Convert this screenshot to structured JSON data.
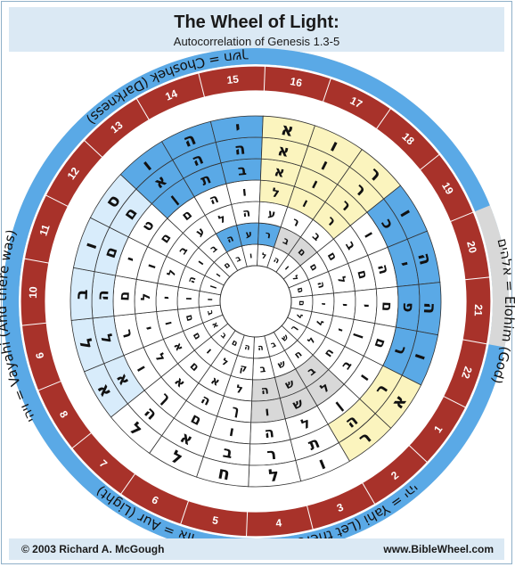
{
  "header": {
    "title": "The Wheel of Light:",
    "subtitle": "Autocorrelation of Genesis 1.3-5"
  },
  "footer": {
    "copyright": "© 2003 Richard A. McGough",
    "website": "www.BibleWheel.com"
  },
  "labels": {
    "aur": "אור = Aur (Light)",
    "yahi": "יהי = Yahi (Let there be)",
    "elohim": "אלהים = Elohim (God)",
    "choshek": "חשך = Choshek (Darkness)",
    "vayahi": "ויהי = Vayahi (And there was)"
  },
  "spokes": [
    "1",
    "2",
    "3",
    "4",
    "5",
    "6",
    "7",
    "8",
    "9",
    "10",
    "11",
    "12",
    "13",
    "14",
    "15",
    "16",
    "17",
    "18",
    "19",
    "20",
    "21",
    "22"
  ],
  "rings": [
    {
      "letters": [
        "",
        "",
        "",
        "",
        "",
        "",
        "",
        "",
        "",
        "",
        "",
        "",
        "",
        "א",
        "ו",
        "ר",
        "",
        ""
      ]
    },
    {
      "letters": []
    },
    {
      "letters": []
    }
  ],
  "cells": [
    [
      "א",
      "ר",
      "ו",
      "ל",
      "ח",
      "ל",
      "ל",
      "א",
      "ל",
      "ב",
      "ו",
      "ס",
      "ו",
      "ה",
      "י",
      "א",
      "ו",
      "ר",
      "ו",
      "ה",
      "ה",
      "ו"
    ],
    [
      "ר",
      "ה",
      "ת",
      "ר",
      "ב",
      "א",
      "ה",
      "א",
      "ל",
      "ה",
      "ם",
      "ם",
      "א",
      "ה",
      "ה",
      "א",
      "ו",
      "ר",
      "כ",
      "י",
      "פ",
      "ר"
    ],
    [
      "ו",
      "ן",
      "ל",
      "ה",
      "ו",
      "ם",
      "ך",
      "ו",
      "ר",
      "ם",
      "י",
      "ט",
      "ן",
      "ת",
      "ב",
      "א",
      "ו",
      "ר",
      "ו",
      "ה",
      "ם",
      "ם"
    ],
    [
      "ב",
      "ל",
      "ש",
      "ו",
      "ך",
      "ה",
      "א",
      "ל",
      "י",
      "ל",
      "ו",
      "ם",
      "ם",
      "ה",
      "ו",
      "ל",
      "ו",
      "ר",
      "ב",
      "ם",
      "י",
      "ן"
    ],
    [
      "ח",
      "ב",
      "ש",
      "ה",
      "ל",
      "א",
      "ם",
      "א",
      "ו",
      "י",
      "ל",
      "ב",
      "ע",
      "ל",
      "ה",
      "ע",
      "ר",
      "ב",
      "ם",
      "ל",
      "י",
      "י"
    ],
    [
      "ל",
      "ח",
      "ש",
      "ב",
      "ק",
      "ל",
      "ו",
      "ם",
      "ם",
      "ו",
      "ה",
      "ו",
      "ב",
      "ה",
      "ע",
      "ר",
      "ב",
      "ם",
      "ם",
      "ה",
      "י",
      "ל"
    ],
    [
      "ך",
      "ש",
      "ב",
      "ה",
      "ה",
      "ם",
      "ב",
      "א",
      "ב",
      "ו",
      "ן",
      "ו",
      "ם",
      "ב",
      "ו",
      "ל",
      "ה",
      "ו",
      "ל",
      "ם",
      "ם",
      "ל"
    ]
  ],
  "colors": {
    "red": "#a8322a",
    "blue": "#5aa9e6",
    "lightblue": "#d8ecfb",
    "yellow": "#fbf4be",
    "grey": "#d8d8d8",
    "header": "#dbe9f4"
  }
}
